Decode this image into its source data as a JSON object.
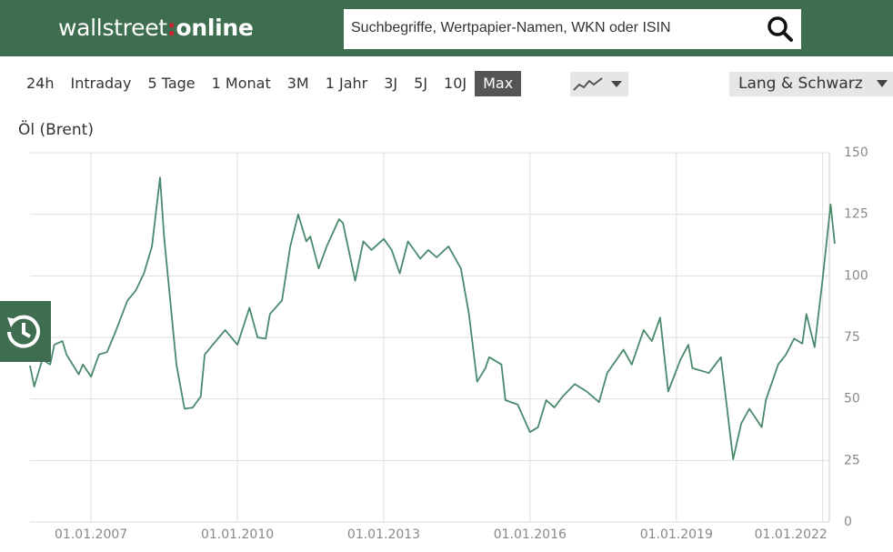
{
  "header": {
    "logo": [
      "wallstreet",
      ":",
      "online"
    ],
    "search_placeholder": "Suchbegriffe, Wertpapier-Namen, WKN oder ISIN"
  },
  "toolbar": {
    "ranges": [
      "24h",
      "Intraday",
      "5 Tage",
      "1 Monat",
      "3M",
      "1 Jahr",
      "3J",
      "5J",
      "10J",
      "Max"
    ],
    "active": "Max",
    "exchange": "Lang & Schwarz"
  },
  "chart_data": {
    "type": "line",
    "title": "Öl (Brent)",
    "x": [
      "2005-10-01",
      "2005-11-01",
      "2006-01-01",
      "2006-03-01",
      "2006-04-01",
      "2006-06-01",
      "2006-07-01",
      "2006-10-01",
      "2006-11-01",
      "2007-01-01",
      "2007-03-01",
      "2007-05-01",
      "2007-07-01",
      "2007-10-01",
      "2007-12-01",
      "2008-02-01",
      "2008-04-01",
      "2008-06-01",
      "2008-07-01",
      "2008-10-01",
      "2008-12-01",
      "2009-02-01",
      "2009-04-01",
      "2009-05-01",
      "2009-07-01",
      "2009-10-01",
      "2010-01-01",
      "2010-04-01",
      "2010-06-01",
      "2010-08-01",
      "2010-09-01",
      "2010-12-01",
      "2011-02-01",
      "2011-04-01",
      "2011-06-01",
      "2011-07-01",
      "2011-09-01",
      "2011-11-01",
      "2012-02-01",
      "2012-03-01",
      "2012-06-01",
      "2012-08-01",
      "2012-10-01",
      "2013-01-01",
      "2013-03-01",
      "2013-05-01",
      "2013-07-01",
      "2013-10-01",
      "2013-12-01",
      "2014-02-01",
      "2014-05-01",
      "2014-08-01",
      "2014-10-01",
      "2014-12-01",
      "2015-02-01",
      "2015-03-01",
      "2015-06-01",
      "2015-07-01",
      "2015-10-01",
      "2016-01-01",
      "2016-03-01",
      "2016-05-01",
      "2016-07-01",
      "2016-09-01",
      "2016-12-01",
      "2017-03-01",
      "2017-06-01",
      "2017-08-01",
      "2017-12-01",
      "2018-02-01",
      "2018-05-01",
      "2018-07-01",
      "2018-09-01",
      "2018-11-01",
      "2019-02-01",
      "2019-04-01",
      "2019-05-01",
      "2019-09-01",
      "2019-12-01",
      "2020-03-01",
      "2020-05-01",
      "2020-07-01",
      "2020-10-01",
      "2020-11-01",
      "2021-02-01",
      "2021-04-01",
      "2021-06-01",
      "2021-08-01",
      "2021-09-01",
      "2021-11-01",
      "2022-01-01",
      "2022-03-01",
      "2022-04-01"
    ],
    "series": [
      {
        "color": "#4a8a6c",
        "values": [
          63.5,
          55,
          66,
          64,
          72,
          73.5,
          68,
          60,
          64,
          59,
          68,
          69,
          77,
          90,
          94,
          101,
          112,
          140,
          116,
          64,
          46,
          46.5,
          51,
          68,
          72,
          78,
          72,
          87,
          75,
          74.5,
          84.5,
          90,
          112,
          125,
          114,
          116,
          103,
          112,
          123,
          121.5,
          98,
          114,
          110.5,
          115,
          110.5,
          101,
          114,
          107,
          110.5,
          107.5,
          112,
          103,
          84.5,
          57,
          62.5,
          67,
          64,
          49.5,
          47.7,
          36.5,
          38.5,
          49.5,
          46.5,
          51,
          56,
          53,
          48.7,
          60.5,
          70,
          64,
          78,
          73.5,
          83,
          53,
          66,
          72,
          62.5,
          60.5,
          67,
          25.5,
          40,
          46,
          38.5,
          49.5,
          64,
          68,
          74.5,
          72.5,
          84.5,
          71,
          99,
          129,
          113
        ]
      }
    ],
    "xlim": [
      "2005-10-01",
      "2022-04-15"
    ],
    "xticks": [
      {
        "value": "2007-01-01",
        "label": "01.01.2007"
      },
      {
        "value": "2010-01-01",
        "label": "01.01.2010"
      },
      {
        "value": "2013-01-01",
        "label": "01.01.2013"
      },
      {
        "value": "2016-01-01",
        "label": "01.01.2016"
      },
      {
        "value": "2019-01-01",
        "label": "01.01.2019"
      },
      {
        "value": "2022-01-01",
        "label": "01.01.2022"
      }
    ],
    "ylim": [
      0,
      150
    ],
    "yticks": [
      0,
      25,
      50,
      75,
      100,
      125,
      150
    ],
    "grid": true
  }
}
